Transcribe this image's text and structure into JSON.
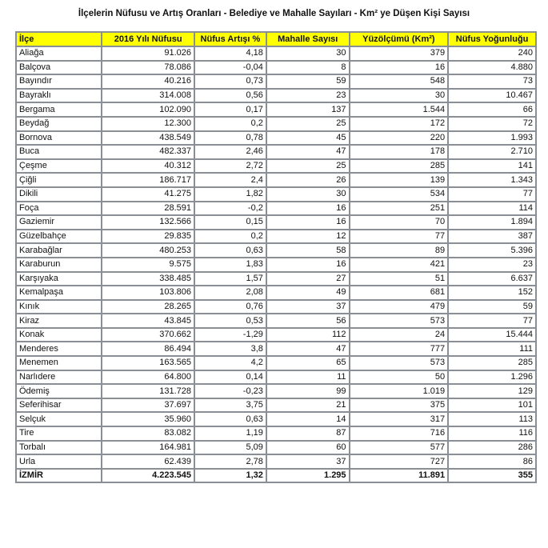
{
  "title": "İlçelerin Nüfusu ve Artış Oranları - Belediye ve Mahalle Sayıları - Km² ye Düşen Kişi Sayısı",
  "headers": [
    "İlçe",
    "2016 Yılı Nüfusu",
    "Nüfus Artışı %",
    "Mahalle Sayısı",
    "Yüzölçümü (Km²)",
    "Nüfus Yoğunluğu"
  ],
  "rows": [
    [
      "Aliağa",
      "91.026",
      "4,18",
      "30",
      "379",
      "240"
    ],
    [
      "Balçova",
      "78.086",
      "-0,04",
      "8",
      "16",
      "4.880"
    ],
    [
      "Bayındır",
      "40.216",
      "0,73",
      "59",
      "548",
      "73"
    ],
    [
      "Bayraklı",
      "314.008",
      "0,56",
      "23",
      "30",
      "10.467"
    ],
    [
      "Bergama",
      "102.090",
      "0,17",
      "137",
      "1.544",
      "66"
    ],
    [
      "Beydağ",
      "12.300",
      "0,2",
      "25",
      "172",
      "72"
    ],
    [
      "Bornova",
      "438.549",
      "0,78",
      "45",
      "220",
      "1.993"
    ],
    [
      "Buca",
      "482.337",
      "2,46",
      "47",
      "178",
      "2.710"
    ],
    [
      "Çeşme",
      "40.312",
      "2,72",
      "25",
      "285",
      "141"
    ],
    [
      "Çiğli",
      "186.717",
      "2,4",
      "26",
      "139",
      "1.343"
    ],
    [
      "Dikili",
      "41.275",
      "1,82",
      "30",
      "534",
      "77"
    ],
    [
      "Foça",
      "28.591",
      "-0,2",
      "16",
      "251",
      "114"
    ],
    [
      "Gaziemir",
      "132.566",
      "0,15",
      "16",
      "70",
      "1.894"
    ],
    [
      "Güzelbahçe",
      "29.835",
      "0,2",
      "12",
      "77",
      "387"
    ],
    [
      "Karabağlar",
      "480.253",
      "0,63",
      "58",
      "89",
      "5.396"
    ],
    [
      "Karaburun",
      "9.575",
      "1,83",
      "16",
      "421",
      "23"
    ],
    [
      "Karşıyaka",
      "338.485",
      "1,57",
      "27",
      "51",
      "6.637"
    ],
    [
      "Kemalpaşa",
      "103.806",
      "2,08",
      "49",
      "681",
      "152"
    ],
    [
      "Kınık",
      "28.265",
      "0,76",
      "37",
      "479",
      "59"
    ],
    [
      "Kiraz",
      "43.845",
      "0,53",
      "56",
      "573",
      "77"
    ],
    [
      "Konak",
      "370.662",
      "-1,29",
      "112",
      "24",
      "15.444"
    ],
    [
      "Menderes",
      "86.494",
      "3,8",
      "47",
      "777",
      "111"
    ],
    [
      "Menemen",
      "163.565",
      "4,2",
      "65",
      "573",
      "285"
    ],
    [
      "Narlıdere",
      "64.800",
      "0,14",
      "11",
      "50",
      "1.296"
    ],
    [
      "Ödemiş",
      "131.728",
      "-0,23",
      "99",
      "1.019",
      "129"
    ],
    [
      "Seferihisar",
      "37.697",
      "3,75",
      "21",
      "375",
      "101"
    ],
    [
      "Selçuk",
      "35.960",
      "0,63",
      "14",
      "317",
      "113"
    ],
    [
      "Tire",
      "83.082",
      "1,19",
      "87",
      "716",
      "116"
    ],
    [
      "Torbalı",
      "164.981",
      "5,09",
      "60",
      "577",
      "286"
    ],
    [
      "Urla",
      "62.439",
      "2,78",
      "37",
      "727",
      "86"
    ]
  ],
  "total": [
    "İZMİR",
    "4.223.545",
    "1,32",
    "1.295",
    "11.891",
    "355"
  ],
  "colors": {
    "header_bg": "#ffff00",
    "border": "#8a8f96"
  }
}
